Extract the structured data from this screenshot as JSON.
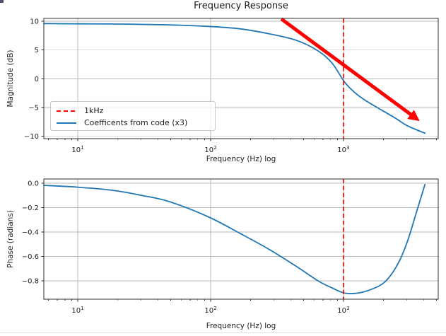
{
  "figure": {
    "title": "Frequency Response",
    "background": "#ffffff"
  },
  "colors": {
    "line_blue": "#1f77b4",
    "annotation_red": "#ff0000",
    "grid": "#b9b9b9",
    "spine": "#2e2e2e",
    "text": "#1a1a1a"
  },
  "legend": {
    "entries": [
      {
        "label": "1kHz",
        "color": "#ff0000",
        "linestyle": "dashed"
      },
      {
        "label": "Coefficents from code (x3)",
        "color": "#1f77b4",
        "linestyle": "solid"
      }
    ]
  },
  "chart_data": [
    {
      "type": "line",
      "title": "Frequency Response",
      "xlabel": "Frequency (Hz) log",
      "ylabel": "Magnitude (dB)",
      "xscale": "log",
      "xlim": [
        5.55,
        5160
      ],
      "ylim": [
        -10.4,
        10.5
      ],
      "grid": true,
      "xticks": [
        {
          "value": 10,
          "label_base": "10",
          "label_exp": "1"
        },
        {
          "value": 100,
          "label_base": "10",
          "label_exp": "2"
        },
        {
          "value": 1000,
          "label_base": "10",
          "label_exp": "3"
        }
      ],
      "yticks": [
        {
          "value": 10,
          "label": "10"
        },
        {
          "value": 5,
          "label": "5"
        },
        {
          "value": 0,
          "label": "0"
        },
        {
          "value": -5,
          "label": "−5"
        },
        {
          "value": -10,
          "label": "−10"
        }
      ],
      "vline": {
        "x": 1000,
        "color": "#ff0000",
        "linestyle": "dashed",
        "label": "1kHz"
      },
      "annotation_arrow": {
        "from_xy": [
          340,
          10.4
        ],
        "to_xy": [
          3570,
          -7.0
        ],
        "color": "#ff0000"
      },
      "series": [
        {
          "name": "Coefficents from code (x3)",
          "color": "#1f77b4",
          "points": [
            [
              5.55,
              9.6
            ],
            [
              11,
              9.55
            ],
            [
              24,
              9.5
            ],
            [
              49,
              9.37
            ],
            [
              96,
              9.11
            ],
            [
              167,
              8.68
            ],
            [
              273,
              7.84
            ],
            [
              446,
              6.65
            ],
            [
              644,
              4.85
            ],
            [
              822,
              2.7
            ],
            [
              1026,
              -0.66
            ],
            [
              1262,
              -2.7
            ],
            [
              1517,
              -4.0
            ],
            [
              1937,
              -5.45
            ],
            [
              2477,
              -6.9
            ],
            [
              2972,
              -8.08
            ],
            [
              3490,
              -8.8
            ],
            [
              4100,
              -9.45
            ]
          ]
        }
      ]
    },
    {
      "type": "line",
      "xlabel": "Frequency (Hz) log",
      "ylabel": "Phase (radians)",
      "xscale": "log",
      "xlim": [
        5.55,
        5160
      ],
      "ylim": [
        -0.95,
        0.035
      ],
      "grid": true,
      "xticks": [
        {
          "value": 10,
          "label_base": "10",
          "label_exp": "1"
        },
        {
          "value": 100,
          "label_base": "10",
          "label_exp": "2"
        },
        {
          "value": 1000,
          "label_base": "10",
          "label_exp": "3"
        }
      ],
      "yticks": [
        {
          "value": 0.0,
          "label": "0.0"
        },
        {
          "value": -0.2,
          "label": "−0.2"
        },
        {
          "value": -0.4,
          "label": "−0.4"
        },
        {
          "value": -0.6,
          "label": "−0.6"
        },
        {
          "value": -0.8,
          "label": "−0.8"
        }
      ],
      "vline": {
        "x": 1000,
        "color": "#ff0000",
        "linestyle": "dashed",
        "label": "1kHz"
      },
      "series": [
        {
          "name": "Coefficents from code (x3)",
          "color": "#1f77b4",
          "points": [
            [
              5.55,
              -0.017
            ],
            [
              10,
              -0.032
            ],
            [
              18.4,
              -0.058
            ],
            [
              30,
              -0.099
            ],
            [
              49,
              -0.151
            ],
            [
              96,
              -0.275
            ],
            [
              167,
              -0.412
            ],
            [
              273,
              -0.539
            ],
            [
              446,
              -0.684
            ],
            [
              644,
              -0.8
            ],
            [
              822,
              -0.858
            ],
            [
              1013,
              -0.899
            ],
            [
              1262,
              -0.901
            ],
            [
              1612,
              -0.87
            ],
            [
              2058,
              -0.806
            ],
            [
              2563,
              -0.661
            ],
            [
              3040,
              -0.47
            ],
            [
              3577,
              -0.22
            ],
            [
              4100,
              -0.01
            ]
          ]
        }
      ]
    }
  ]
}
